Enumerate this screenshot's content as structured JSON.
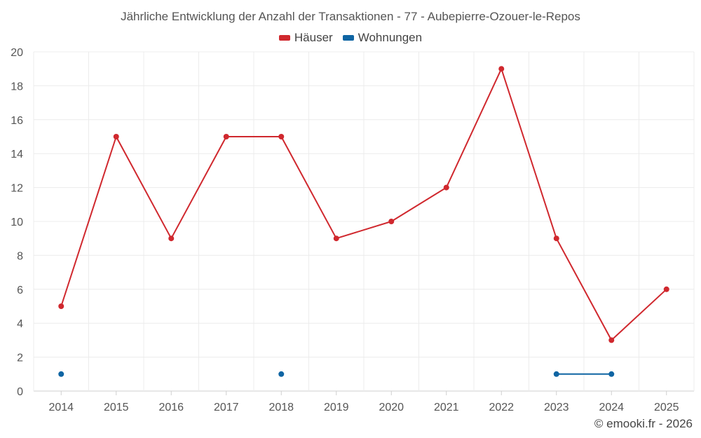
{
  "chart_data": {
    "type": "line",
    "title": "Jährliche Entwicklung der Anzahl der Transaktionen - 77 - Aubepierre-Ozouer-le-Repos",
    "xlabel": "",
    "ylabel": "",
    "categories": [
      "2014",
      "2015",
      "2016",
      "2017",
      "2018",
      "2019",
      "2020",
      "2021",
      "2022",
      "2023",
      "2024",
      "2025"
    ],
    "ylim": [
      0,
      20
    ],
    "yticks": [
      0,
      2,
      4,
      6,
      8,
      10,
      12,
      14,
      16,
      18,
      20
    ],
    "grid": true,
    "legend_position": "top-center",
    "series": [
      {
        "name": "Häuser",
        "color": "#d0282e",
        "values": [
          5,
          15,
          9,
          15,
          15,
          9,
          10,
          12,
          19,
          9,
          3,
          6
        ]
      },
      {
        "name": "Wohnungen",
        "color": "#0f65a3",
        "values": [
          1,
          null,
          null,
          null,
          1,
          null,
          null,
          null,
          null,
          1,
          1,
          null
        ]
      }
    ]
  },
  "credit": "© emooki.fr - 2026"
}
